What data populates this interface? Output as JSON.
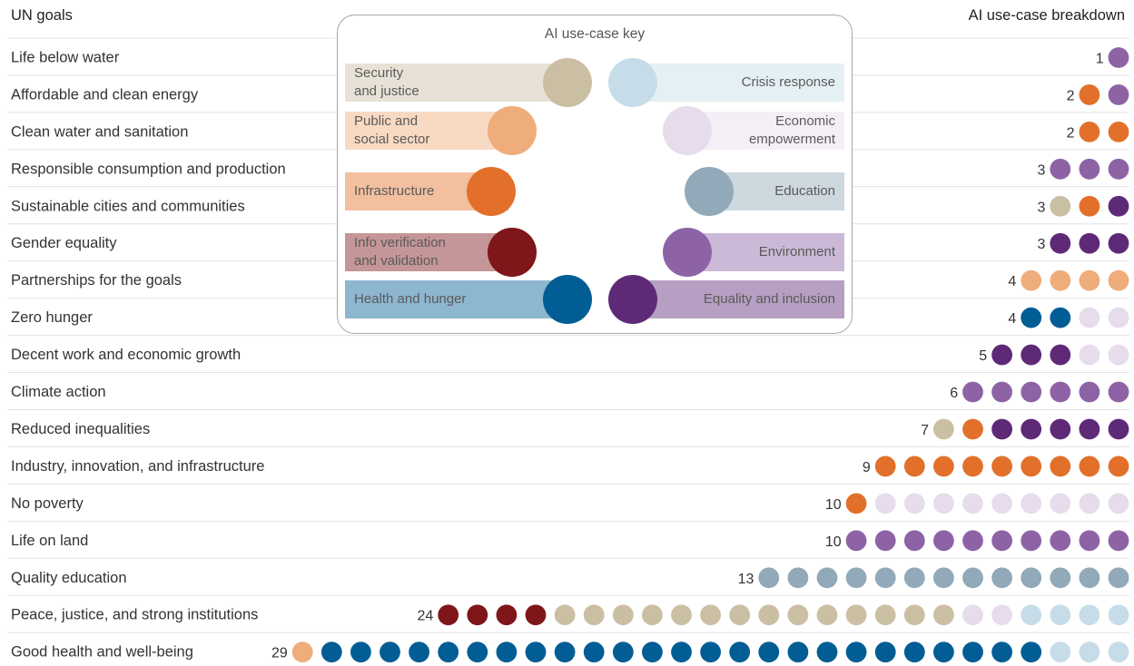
{
  "header": {
    "left_title": "UN goals",
    "right_title": "AI use-case breakdown"
  },
  "key": {
    "title": "AI use-case key",
    "left": [
      {
        "id": "security",
        "label": "Security\nand justice"
      },
      {
        "id": "public",
        "label": "Public and\nsocial sector"
      },
      {
        "id": "infrastructure",
        "label": "Infrastructure"
      },
      {
        "id": "info",
        "label": "Info verification\nand validation"
      },
      {
        "id": "health",
        "label": "Health and hunger"
      }
    ],
    "right": [
      {
        "id": "crisis",
        "label": "Crisis response"
      },
      {
        "id": "economic",
        "label": "Economic\nempowerment"
      },
      {
        "id": "education",
        "label": "Education"
      },
      {
        "id": "environment",
        "label": "Environment"
      },
      {
        "id": "equality",
        "label": "Equality and inclusion"
      }
    ]
  },
  "colors": {
    "security": "#cbbfa3",
    "public": "#efad7b",
    "infrastructure": "#e2702b",
    "info": "#7f1619",
    "health": "#035d95",
    "crisis": "#c6dde9",
    "economic": "#e6dcec",
    "education": "#91a9b8",
    "environment": "#8e63a6",
    "equality": "#5e2a78",
    "row_divider": "#e2e2e2",
    "count_text": "#333333"
  },
  "chart_data": {
    "type": "unit_dot_chart",
    "title": "",
    "row_header": "UN goals",
    "value_header": "AI use-case breakdown",
    "rows": [
      {
        "goal": "Life below water",
        "count": 1,
        "breakdown": {
          "environment": 1
        }
      },
      {
        "goal": "Affordable and clean energy",
        "count": 2,
        "breakdown": {
          "infrastructure": 1,
          "environment": 1
        }
      },
      {
        "goal": "Clean water and sanitation",
        "count": 2,
        "breakdown": {
          "infrastructure": 2
        }
      },
      {
        "goal": "Responsible consumption and production",
        "count": 3,
        "breakdown": {
          "environment": 3
        }
      },
      {
        "goal": "Sustainable cities and communities",
        "count": 3,
        "breakdown": {
          "security": 1,
          "infrastructure": 1,
          "equality": 1
        }
      },
      {
        "goal": "Gender equality",
        "count": 3,
        "breakdown": {
          "equality": 3
        }
      },
      {
        "goal": "Partnerships for the goals",
        "count": 4,
        "breakdown": {
          "public": 4
        }
      },
      {
        "goal": "Zero hunger",
        "count": 4,
        "breakdown": {
          "health": 2,
          "economic": 2
        }
      },
      {
        "goal": "Decent work and economic growth",
        "count": 5,
        "breakdown": {
          "equality": 3,
          "economic": 2
        }
      },
      {
        "goal": "Climate action",
        "count": 6,
        "breakdown": {
          "environment": 6
        }
      },
      {
        "goal": "Reduced inequalities",
        "count": 7,
        "breakdown": {
          "security": 1,
          "infrastructure": 1,
          "equality": 5
        }
      },
      {
        "goal": "Industry, innovation, and infrastructure",
        "count": 9,
        "breakdown": {
          "infrastructure": 9
        }
      },
      {
        "goal": "No poverty",
        "count": 10,
        "breakdown": {
          "infrastructure": 1,
          "economic": 9
        }
      },
      {
        "goal": "Life on land",
        "count": 10,
        "breakdown": {
          "environment": 10
        }
      },
      {
        "goal": "Quality education",
        "count": 13,
        "breakdown": {
          "education": 13
        }
      },
      {
        "goal": "Peace, justice, and strong institutions",
        "count": 24,
        "breakdown": {
          "info": 4,
          "security": 14,
          "economic": 2,
          "crisis": 4
        }
      },
      {
        "goal": "Good health and well-being",
        "count": 29,
        "breakdown": {
          "public": 1,
          "health": 25,
          "crisis": 3
        }
      }
    ]
  }
}
